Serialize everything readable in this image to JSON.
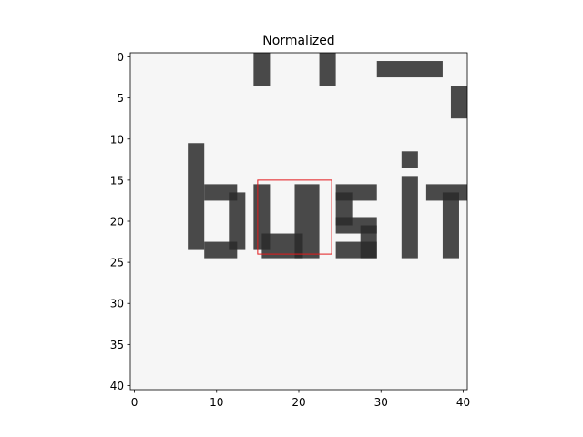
{
  "chart_data": {
    "type": "heatmap",
    "title": "Normalized",
    "xlabel": "",
    "ylabel": "",
    "image_size": [
      41,
      41
    ],
    "xlim": [
      -0.5,
      40.5
    ],
    "ylim": [
      40.5,
      -0.5
    ],
    "x_ticks": [
      0,
      10,
      20,
      30,
      40
    ],
    "y_ticks": [
      0,
      5,
      10,
      15,
      20,
      25,
      30,
      35,
      40
    ],
    "x_tick_labels": [
      "0",
      "10",
      "20",
      "30",
      "40"
    ],
    "y_tick_labels": [
      "0",
      "5",
      "10",
      "15",
      "20",
      "25",
      "30",
      "35",
      "40"
    ],
    "colormap": "gray",
    "image_description": "grayscale crop of scanned text showing the letters 'busi' with fragments of a line above",
    "dark_strokes": [
      {
        "x": [
          7,
          9
        ],
        "y": [
          11,
          24
        ]
      },
      {
        "x": [
          9,
          13
        ],
        "y": [
          16,
          18
        ]
      },
      {
        "x": [
          12,
          14
        ],
        "y": [
          17,
          24
        ]
      },
      {
        "x": [
          9,
          13
        ],
        "y": [
          23,
          25
        ]
      },
      {
        "x": [
          15,
          17
        ],
        "y": [
          16,
          24
        ]
      },
      {
        "x": [
          16,
          21
        ],
        "y": [
          22,
          25
        ]
      },
      {
        "x": [
          20,
          23
        ],
        "y": [
          16,
          25
        ]
      },
      {
        "x": [
          25,
          30
        ],
        "y": [
          16,
          18
        ]
      },
      {
        "x": [
          25,
          27
        ],
        "y": [
          17,
          21
        ]
      },
      {
        "x": [
          25,
          30
        ],
        "y": [
          20,
          22
        ]
      },
      {
        "x": [
          28,
          30
        ],
        "y": [
          21,
          25
        ]
      },
      {
        "x": [
          25,
          30
        ],
        "y": [
          23,
          25
        ]
      },
      {
        "x": [
          33,
          35
        ],
        "y": [
          15,
          25
        ]
      },
      {
        "x": [
          33,
          35
        ],
        "y": [
          12,
          14
        ]
      },
      {
        "x": [
          36,
          41
        ],
        "y": [
          16,
          18
        ]
      },
      {
        "x": [
          38,
          40
        ],
        "y": [
          17,
          25
        ]
      },
      {
        "x": [
          15,
          17
        ],
        "y": [
          0,
          4
        ]
      },
      {
        "x": [
          23,
          25
        ],
        "y": [
          0,
          4
        ]
      },
      {
        "x": [
          30,
          38
        ],
        "y": [
          1,
          3
        ]
      },
      {
        "x": [
          39,
          41
        ],
        "y": [
          4,
          8
        ]
      }
    ],
    "highlight_box": {
      "x0": 15,
      "y0": 15,
      "x1": 24,
      "y1": 24,
      "color": "#e31a1c"
    },
    "colors": {
      "background": "#ffffff",
      "image_base": "#f6f6f6",
      "ink": "#2a2a2a",
      "box": "#e31a1c"
    }
  }
}
